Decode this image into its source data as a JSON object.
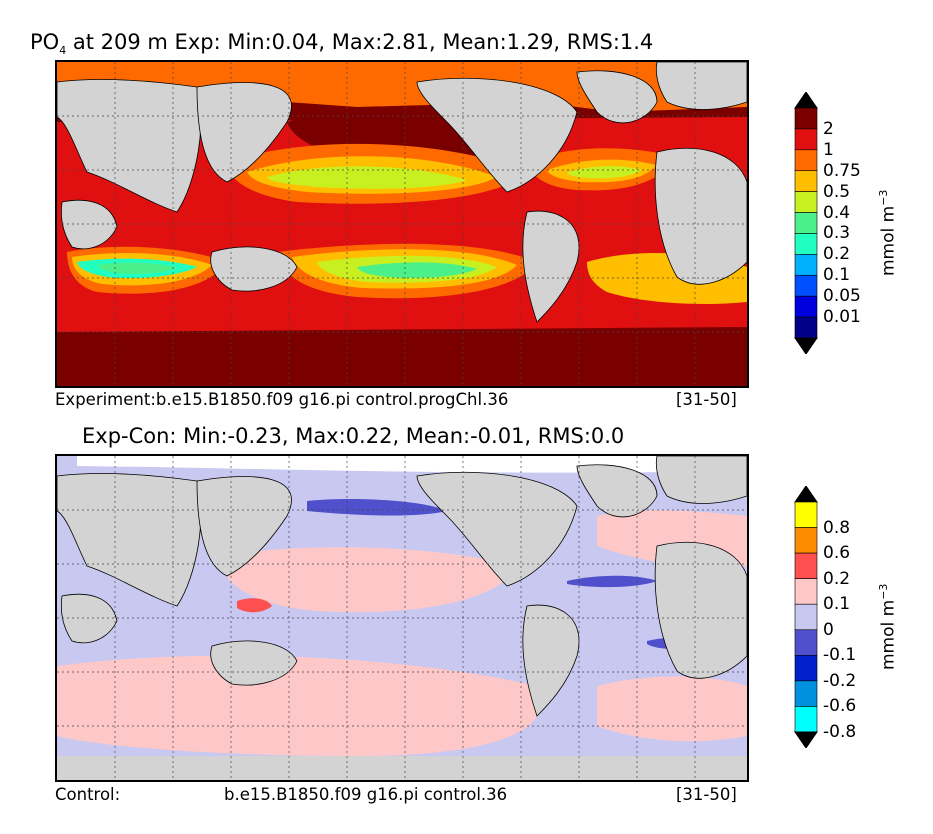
{
  "top_panel": {
    "title_species": "PO",
    "title_sub": "4",
    "title_rest": "at 209 m Exp: Min:0.04, Max:2.81, Mean:1.29, RMS:1.4",
    "caption_left": "Experiment:b.e15.B1850.f09 g16.pi control.progChl.36",
    "caption_right": "[31-50]",
    "colorbar": {
      "unit_base": "mmol m",
      "unit_exp": "−3",
      "levels": [
        "2",
        "1",
        "0.75",
        "0.5",
        "0.4",
        "0.3",
        "0.2",
        "0.1",
        "0.05",
        "0.01"
      ],
      "colors": [
        "#000000",
        "#7a0000",
        "#e01010",
        "#ff6a00",
        "#ffbf00",
        "#c8f020",
        "#4cf08a",
        "#20ffc0",
        "#00b0ff",
        "#0050ff",
        "#0000dd",
        "#000088",
        "#000000"
      ]
    }
  },
  "bottom_panel": {
    "title": "Exp-Con: Min:-0.23, Max:0.22, Mean:-0.01, RMS:0.0",
    "caption_left": "Control:",
    "caption_mid": "b.e15.B1850.f09 g16.pi control.36",
    "caption_right": "[31-50]",
    "colorbar": {
      "unit_base": "mmol m",
      "unit_exp": "−3",
      "levels": [
        "0.8",
        "0.6",
        "0.2",
        "0.1",
        "0",
        "-0.1",
        "-0.2",
        "-0.6",
        "-0.8"
      ],
      "colors": [
        "#000000",
        "#ffff00",
        "#ff8c00",
        "#ff5050",
        "#ffc8c8",
        "#c8c8f0",
        "#5050cc",
        "#0020cc",
        "#0090e0",
        "#00ffff",
        "#000000"
      ]
    }
  },
  "chart_data": [
    {
      "type": "heatmap",
      "title": "PO4 at 209 m Exp: Min:0.04, Max:2.81, Mean:1.29, RMS:1.4",
      "variable": "PO4",
      "depth_m": 209,
      "min": 0.04,
      "max": 2.81,
      "mean": 1.29,
      "rms": 1.4,
      "contour_levels": [
        0.01,
        0.05,
        0.1,
        0.2,
        0.3,
        0.4,
        0.5,
        0.75,
        1,
        2
      ],
      "units": "mmol m^-3",
      "case": "b.e15.B1850.f09 g16.pi control.progChl.36",
      "years": "[31-50]"
    },
    {
      "type": "heatmap",
      "title": "Exp-Con: Min:-0.23, Max:0.22, Mean:-0.01, RMS:0.0",
      "variable": "PO4 difference",
      "min": -0.23,
      "max": 0.22,
      "mean": -0.01,
      "rms": 0.0,
      "contour_levels": [
        -0.8,
        -0.6,
        -0.2,
        -0.1,
        0,
        0.1,
        0.2,
        0.6,
        0.8
      ],
      "units": "mmol m^-3",
      "case": "b.e15.B1850.f09 g16.pi control.36",
      "years": "[31-50]"
    }
  ]
}
